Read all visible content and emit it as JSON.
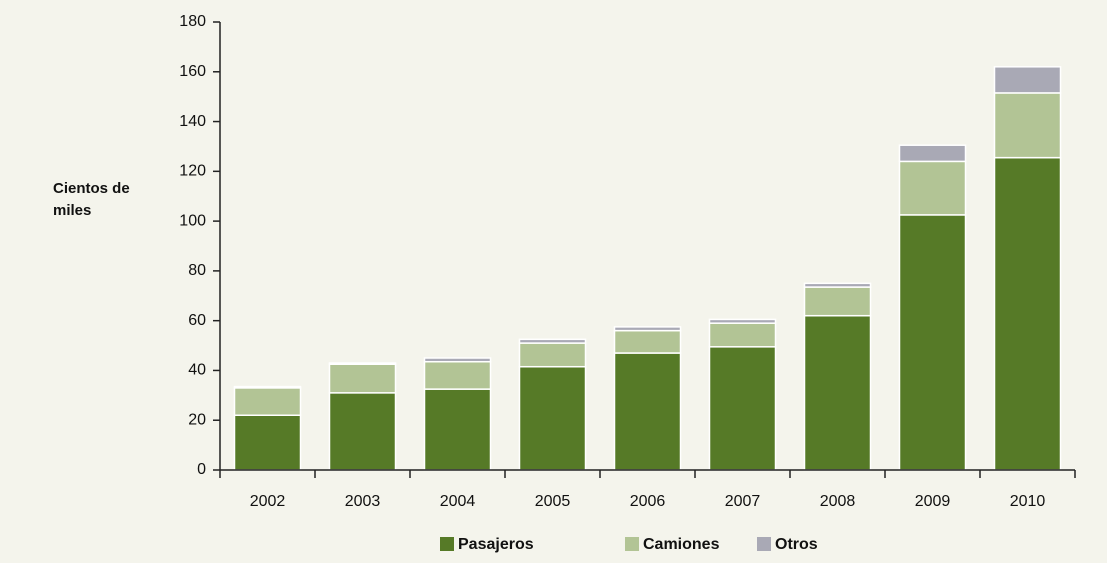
{
  "chart_data": {
    "type": "stacked-bar",
    "y_label": "Cientos de miles",
    "categories": [
      "2002",
      "2003",
      "2004",
      "2005",
      "2006",
      "2007",
      "2008",
      "2009",
      "2010"
    ],
    "series": [
      {
        "name": "Pasajeros",
        "color": "#567a27",
        "values": [
          22,
          31,
          32.5,
          41.5,
          47,
          49.5,
          62,
          102.5,
          125.5
        ]
      },
      {
        "name": "Camiones",
        "color": "#b2c495",
        "values": [
          11,
          11.5,
          11,
          9.5,
          9,
          9.5,
          11.5,
          21.5,
          26
        ]
      },
      {
        "name": "Otros",
        "color": "#a9a9b5",
        "values": [
          0.5,
          0.5,
          1.5,
          1.5,
          1.5,
          1.5,
          1.5,
          6.5,
          10.5
        ]
      }
    ],
    "ylim": [
      0,
      180
    ],
    "yticks": [
      0,
      20,
      40,
      60,
      80,
      100,
      120,
      140,
      160,
      180
    ],
    "legend": "bottom"
  }
}
